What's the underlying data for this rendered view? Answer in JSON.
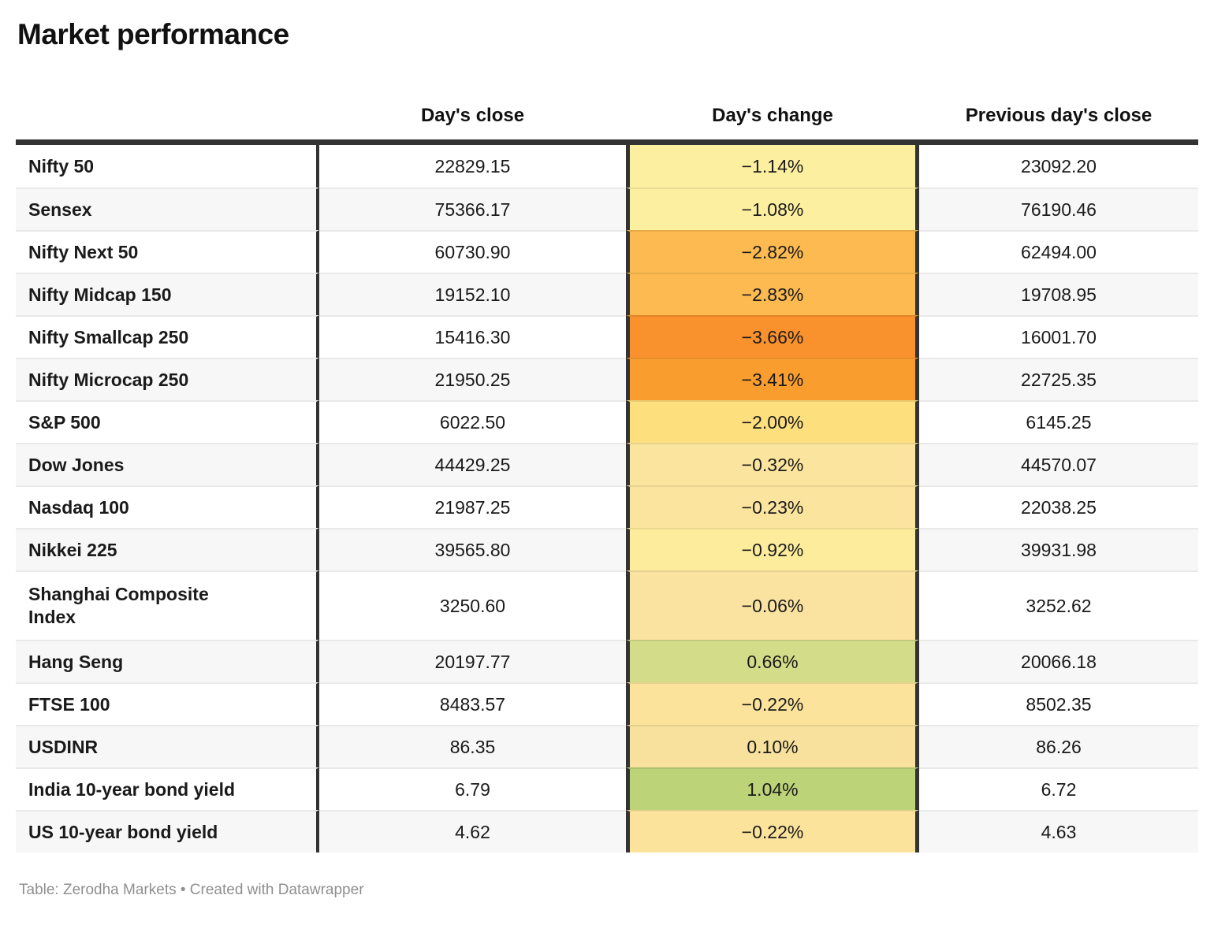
{
  "title": "Market performance",
  "footer": "Table: Zerodha Markets • Created with Datawrapper",
  "colors": {
    "header_border": "#333333",
    "row_stripe": "#f7f7f7",
    "row_separator": "#e9e9e9",
    "negative_strong": "#f9912c",
    "negative_mild": "#fdefa0",
    "positive": "#bcd378"
  },
  "chart_data": {
    "type": "table",
    "title": "Market performance",
    "columns": [
      "Day's close",
      "Day's change",
      "Previous day's close"
    ],
    "footer": "Table: Zerodha Markets • Created with Datawrapper",
    "rows": [
      {
        "label": "Nifty 50",
        "close": "22829.15",
        "change": "−1.14%",
        "change_value": -1.14,
        "prev": "23092.20",
        "cell_color": "#fdefa0"
      },
      {
        "label": "Sensex",
        "close": "75366.17",
        "change": "−1.08%",
        "change_value": -1.08,
        "prev": "76190.46",
        "cell_color": "#fdefa0"
      },
      {
        "label": "Nifty Next 50",
        "close": "60730.90",
        "change": "−2.82%",
        "change_value": -2.82,
        "prev": "62494.00",
        "cell_color": "#fcba50"
      },
      {
        "label": "Nifty Midcap 150",
        "close": "19152.10",
        "change": "−2.83%",
        "change_value": -2.83,
        "prev": "19708.95",
        "cell_color": "#fcba50"
      },
      {
        "label": "Nifty Smallcap 250",
        "close": "15416.30",
        "change": "−3.66%",
        "change_value": -3.66,
        "prev": "16001.70",
        "cell_color": "#f9912c"
      },
      {
        "label": "Nifty Microcap 250",
        "close": "21950.25",
        "change": "−3.41%",
        "change_value": -3.41,
        "prev": "22725.35",
        "cell_color": "#fa9d2f"
      },
      {
        "label": "S&P 500",
        "close": "6022.50",
        "change": "−2.00%",
        "change_value": -2.0,
        "prev": "6145.25",
        "cell_color": "#fddf7e"
      },
      {
        "label": "Dow Jones",
        "close": "44429.25",
        "change": "−0.32%",
        "change_value": -0.32,
        "prev": "44570.07",
        "cell_color": "#fbe49e"
      },
      {
        "label": "Nasdaq 100",
        "close": "21987.25",
        "change": "−0.23%",
        "change_value": -0.23,
        "prev": "22038.25",
        "cell_color": "#fbe49d"
      },
      {
        "label": "Nikkei 225",
        "close": "39565.80",
        "change": "−0.92%",
        "change_value": -0.92,
        "prev": "39931.98",
        "cell_color": "#fcec9c"
      },
      {
        "label": "Shanghai Composite\nIndex",
        "close": "3250.60",
        "change": "−0.06%",
        "change_value": -0.06,
        "prev": "3252.62",
        "cell_color": "#fae2a0"
      },
      {
        "label": "Hang Seng",
        "close": "20197.77",
        "change": "0.66%",
        "change_value": 0.66,
        "prev": "20066.18",
        "cell_color": "#d2dc89"
      },
      {
        "label": "FTSE 100",
        "close": "8483.57",
        "change": "−0.22%",
        "change_value": -0.22,
        "prev": "8502.35",
        "cell_color": "#fbe39b"
      },
      {
        "label": "USDINR",
        "close": "86.35",
        "change": "0.10%",
        "change_value": 0.1,
        "prev": "86.26",
        "cell_color": "#f8e19d"
      },
      {
        "label": "India 10-year bond yield",
        "close": "6.79",
        "change": "1.04%",
        "change_value": 1.04,
        "prev": "6.72",
        "cell_color": "#bcd378"
      },
      {
        "label": "US 10-year bond yield",
        "close": "4.62",
        "change": "−0.22%",
        "change_value": -0.22,
        "prev": "4.63",
        "cell_color": "#fbe39b"
      }
    ]
  }
}
